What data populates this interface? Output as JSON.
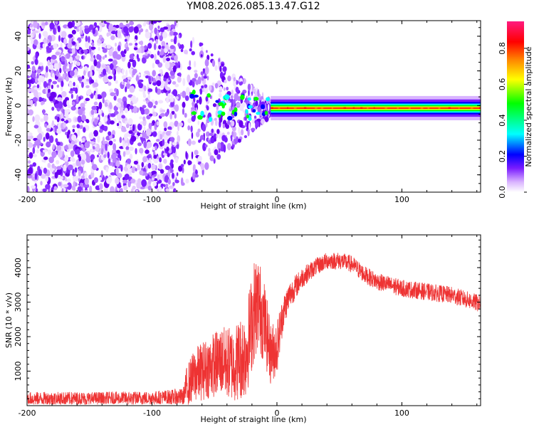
{
  "title": "YM08.2026.085.13.47.G12",
  "chart_data": [
    {
      "type": "heatmap",
      "title": "YM08.2026.085.13.47.G12",
      "xlabel": "Height of straight line (km)",
      "ylabel": "Frequency (Hz)",
      "xlim": [
        -200,
        163
      ],
      "ylim": [
        -50,
        49
      ],
      "xticks": [
        -200,
        -100,
        0,
        100
      ],
      "yticks": [
        -40,
        -20,
        0,
        20,
        40
      ],
      "description_values": {
        "noise_region_km": [
          -200,
          -80
        ],
        "transition_region_km": [
          -80,
          -5
        ],
        "tone_frequency_hz": -1.5,
        "tone_start_km": -5
      },
      "colorbar": {
        "label": "Normalized spectral amplitude",
        "range": [
          0,
          0.95
        ],
        "ticks": [
          0.0,
          0.2,
          0.4,
          0.6,
          0.8
        ],
        "tick_labels": [
          "0.0",
          "0.2",
          "0.4",
          "0.6",
          "0.8"
        ],
        "colors": [
          "#ffffff",
          "#d9b3ff",
          "#7a1cff",
          "#0000ff",
          "#00ffff",
          "#00ff00",
          "#ffff00",
          "#ff8000",
          "#ff0000",
          "#ff1a80"
        ]
      }
    },
    {
      "type": "line",
      "xlabel": "Height of straight line (km)",
      "ylabel": "SNR (10 * v/v)",
      "xlim": [
        -200,
        163
      ],
      "ylim": [
        0,
        4950
      ],
      "xticks": [
        -200,
        -100,
        0,
        100
      ],
      "yticks": [
        1000,
        2000,
        3000,
        4000
      ],
      "series": [
        {
          "name": "SNR",
          "color": "#ee3333",
          "x": [
            -200,
            -150,
            -100,
            -75,
            -72,
            -65,
            -55,
            -45,
            -35,
            -25,
            -18,
            -15,
            -10,
            -5,
            0,
            5,
            10,
            20,
            30,
            40,
            50,
            60,
            70,
            80,
            100,
            120,
            140,
            163
          ],
          "y": [
            200,
            200,
            220,
            250,
            600,
            900,
            1100,
            1300,
            1200,
            1500,
            2800,
            3000,
            2400,
            1500,
            1700,
            2700,
            3200,
            3700,
            4000,
            4200,
            4200,
            4100,
            3800,
            3600,
            3400,
            3300,
            3200,
            2950
          ],
          "noise_amplitude": [
            200,
            200,
            200,
            250,
            600,
            800,
            900,
            1000,
            1100,
            1300,
            1500,
            1400,
            1200,
            900,
            800,
            500,
            400,
            300,
            250,
            250,
            250,
            250,
            250,
            250,
            250,
            250,
            250,
            250
          ]
        }
      ]
    }
  ]
}
